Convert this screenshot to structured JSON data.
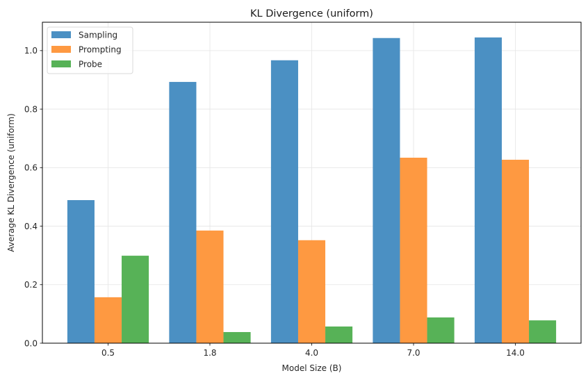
{
  "chart_data": {
    "type": "bar",
    "title": "KL Divergence (uniform)",
    "xlabel": "Model Size (B)",
    "ylabel": "Average KL Divergence (uniform)",
    "categories": [
      "0.5",
      "1.8",
      "4.0",
      "7.0",
      "14.0"
    ],
    "series": [
      {
        "name": "Sampling",
        "color": "#4b90c3",
        "values": [
          0.489,
          0.893,
          0.967,
          1.043,
          1.045
        ]
      },
      {
        "name": "Prompting",
        "color": "#fe9941",
        "values": [
          0.157,
          0.385,
          0.352,
          0.634,
          0.627
        ]
      },
      {
        "name": "Probe",
        "color": "#57b257",
        "values": [
          0.299,
          0.038,
          0.057,
          0.088,
          0.078
        ]
      }
    ],
    "ylim": [
      0,
      1.097
    ],
    "yticks": [
      "0.0",
      "0.2",
      "0.4",
      "0.6",
      "0.8",
      "1.0"
    ],
    "ytick_values": [
      0,
      0.2,
      0.4,
      0.6,
      0.8,
      1.0
    ],
    "grid": true,
    "legend_position": "top-left"
  }
}
